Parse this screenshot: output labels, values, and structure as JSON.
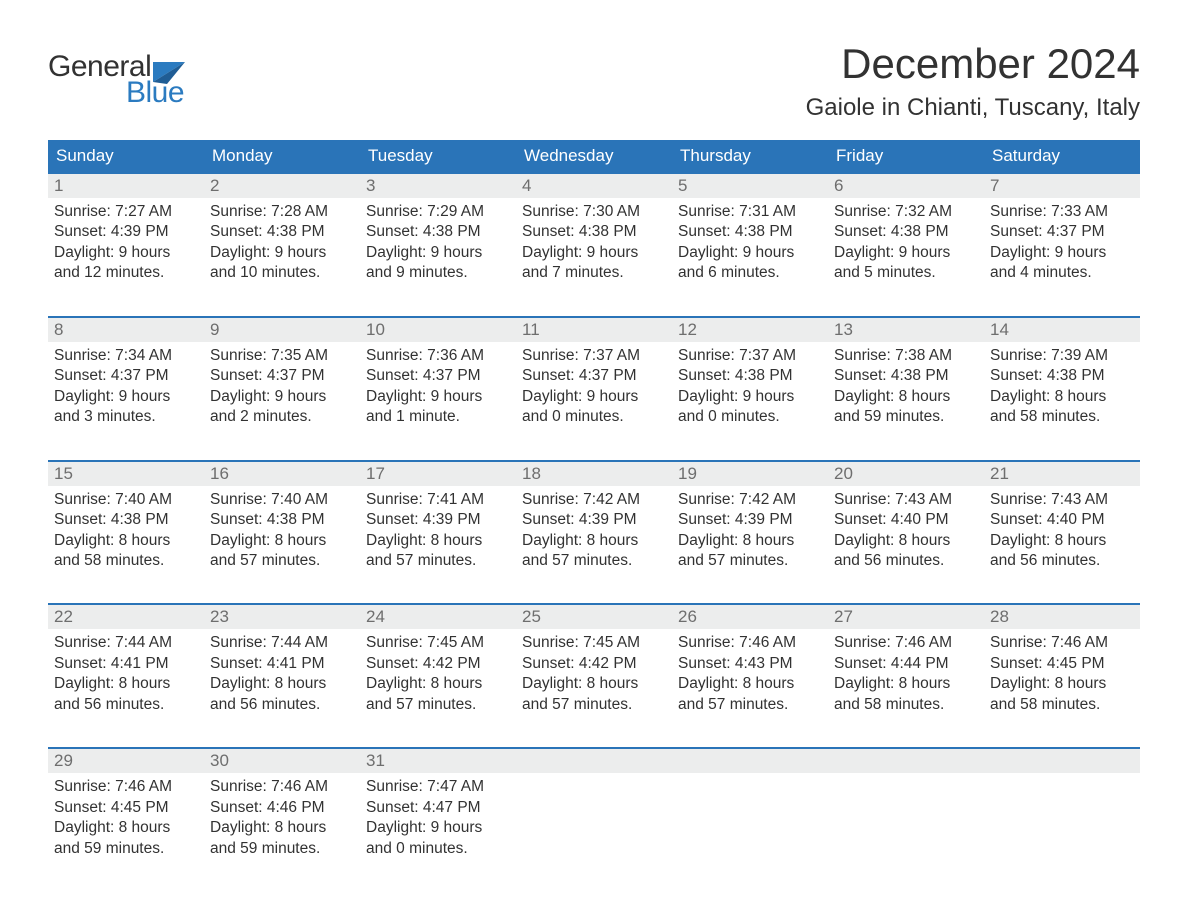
{
  "colors": {
    "header_bg": "#2a74b8",
    "header_text": "#ffffff",
    "daynum_bg": "#eceded",
    "daynum_text": "#6e6e6e",
    "week_top_border": "#2a74b8",
    "body_text": "#323232",
    "logo_blue": "#2b7bc0",
    "page_bg": "#ffffff"
  },
  "typography": {
    "month_title_fontsize": 42,
    "location_fontsize": 24,
    "header_fontsize": 17,
    "daynum_fontsize": 17,
    "cell_fontsize": 15.5,
    "logo_fontsize": 30
  },
  "logo": {
    "line1": "General",
    "line2": "Blue"
  },
  "title": "December 2024",
  "location": "Gaiole in Chianti, Tuscany, Italy",
  "weekday_headers": [
    "Sunday",
    "Monday",
    "Tuesday",
    "Wednesday",
    "Thursday",
    "Friday",
    "Saturday"
  ],
  "weeks": [
    {
      "days": [
        {
          "num": "1",
          "sunrise": "Sunrise: 7:27 AM",
          "sunset": "Sunset: 4:39 PM",
          "day1": "Daylight: 9 hours",
          "day2": "and 12 minutes."
        },
        {
          "num": "2",
          "sunrise": "Sunrise: 7:28 AM",
          "sunset": "Sunset: 4:38 PM",
          "day1": "Daylight: 9 hours",
          "day2": "and 10 minutes."
        },
        {
          "num": "3",
          "sunrise": "Sunrise: 7:29 AM",
          "sunset": "Sunset: 4:38 PM",
          "day1": "Daylight: 9 hours",
          "day2": "and 9 minutes."
        },
        {
          "num": "4",
          "sunrise": "Sunrise: 7:30 AM",
          "sunset": "Sunset: 4:38 PM",
          "day1": "Daylight: 9 hours",
          "day2": "and 7 minutes."
        },
        {
          "num": "5",
          "sunrise": "Sunrise: 7:31 AM",
          "sunset": "Sunset: 4:38 PM",
          "day1": "Daylight: 9 hours",
          "day2": "and 6 minutes."
        },
        {
          "num": "6",
          "sunrise": "Sunrise: 7:32 AM",
          "sunset": "Sunset: 4:38 PM",
          "day1": "Daylight: 9 hours",
          "day2": "and 5 minutes."
        },
        {
          "num": "7",
          "sunrise": "Sunrise: 7:33 AM",
          "sunset": "Sunset: 4:37 PM",
          "day1": "Daylight: 9 hours",
          "day2": "and 4 minutes."
        }
      ]
    },
    {
      "days": [
        {
          "num": "8",
          "sunrise": "Sunrise: 7:34 AM",
          "sunset": "Sunset: 4:37 PM",
          "day1": "Daylight: 9 hours",
          "day2": "and 3 minutes."
        },
        {
          "num": "9",
          "sunrise": "Sunrise: 7:35 AM",
          "sunset": "Sunset: 4:37 PM",
          "day1": "Daylight: 9 hours",
          "day2": "and 2 minutes."
        },
        {
          "num": "10",
          "sunrise": "Sunrise: 7:36 AM",
          "sunset": "Sunset: 4:37 PM",
          "day1": "Daylight: 9 hours",
          "day2": "and 1 minute."
        },
        {
          "num": "11",
          "sunrise": "Sunrise: 7:37 AM",
          "sunset": "Sunset: 4:37 PM",
          "day1": "Daylight: 9 hours",
          "day2": "and 0 minutes."
        },
        {
          "num": "12",
          "sunrise": "Sunrise: 7:37 AM",
          "sunset": "Sunset: 4:38 PM",
          "day1": "Daylight: 9 hours",
          "day2": "and 0 minutes."
        },
        {
          "num": "13",
          "sunrise": "Sunrise: 7:38 AM",
          "sunset": "Sunset: 4:38 PM",
          "day1": "Daylight: 8 hours",
          "day2": "and 59 minutes."
        },
        {
          "num": "14",
          "sunrise": "Sunrise: 7:39 AM",
          "sunset": "Sunset: 4:38 PM",
          "day1": "Daylight: 8 hours",
          "day2": "and 58 minutes."
        }
      ]
    },
    {
      "days": [
        {
          "num": "15",
          "sunrise": "Sunrise: 7:40 AM",
          "sunset": "Sunset: 4:38 PM",
          "day1": "Daylight: 8 hours",
          "day2": "and 58 minutes."
        },
        {
          "num": "16",
          "sunrise": "Sunrise: 7:40 AM",
          "sunset": "Sunset: 4:38 PM",
          "day1": "Daylight: 8 hours",
          "day2": "and 57 minutes."
        },
        {
          "num": "17",
          "sunrise": "Sunrise: 7:41 AM",
          "sunset": "Sunset: 4:39 PM",
          "day1": "Daylight: 8 hours",
          "day2": "and 57 minutes."
        },
        {
          "num": "18",
          "sunrise": "Sunrise: 7:42 AM",
          "sunset": "Sunset: 4:39 PM",
          "day1": "Daylight: 8 hours",
          "day2": "and 57 minutes."
        },
        {
          "num": "19",
          "sunrise": "Sunrise: 7:42 AM",
          "sunset": "Sunset: 4:39 PM",
          "day1": "Daylight: 8 hours",
          "day2": "and 57 minutes."
        },
        {
          "num": "20",
          "sunrise": "Sunrise: 7:43 AM",
          "sunset": "Sunset: 4:40 PM",
          "day1": "Daylight: 8 hours",
          "day2": "and 56 minutes."
        },
        {
          "num": "21",
          "sunrise": "Sunrise: 7:43 AM",
          "sunset": "Sunset: 4:40 PM",
          "day1": "Daylight: 8 hours",
          "day2": "and 56 minutes."
        }
      ]
    },
    {
      "days": [
        {
          "num": "22",
          "sunrise": "Sunrise: 7:44 AM",
          "sunset": "Sunset: 4:41 PM",
          "day1": "Daylight: 8 hours",
          "day2": "and 56 minutes."
        },
        {
          "num": "23",
          "sunrise": "Sunrise: 7:44 AM",
          "sunset": "Sunset: 4:41 PM",
          "day1": "Daylight: 8 hours",
          "day2": "and 56 minutes."
        },
        {
          "num": "24",
          "sunrise": "Sunrise: 7:45 AM",
          "sunset": "Sunset: 4:42 PM",
          "day1": "Daylight: 8 hours",
          "day2": "and 57 minutes."
        },
        {
          "num": "25",
          "sunrise": "Sunrise: 7:45 AM",
          "sunset": "Sunset: 4:42 PM",
          "day1": "Daylight: 8 hours",
          "day2": "and 57 minutes."
        },
        {
          "num": "26",
          "sunrise": "Sunrise: 7:46 AM",
          "sunset": "Sunset: 4:43 PM",
          "day1": "Daylight: 8 hours",
          "day2": "and 57 minutes."
        },
        {
          "num": "27",
          "sunrise": "Sunrise: 7:46 AM",
          "sunset": "Sunset: 4:44 PM",
          "day1": "Daylight: 8 hours",
          "day2": "and 58 minutes."
        },
        {
          "num": "28",
          "sunrise": "Sunrise: 7:46 AM",
          "sunset": "Sunset: 4:45 PM",
          "day1": "Daylight: 8 hours",
          "day2": "and 58 minutes."
        }
      ]
    },
    {
      "days": [
        {
          "num": "29",
          "sunrise": "Sunrise: 7:46 AM",
          "sunset": "Sunset: 4:45 PM",
          "day1": "Daylight: 8 hours",
          "day2": "and 59 minutes."
        },
        {
          "num": "30",
          "sunrise": "Sunrise: 7:46 AM",
          "sunset": "Sunset: 4:46 PM",
          "day1": "Daylight: 8 hours",
          "day2": "and 59 minutes."
        },
        {
          "num": "31",
          "sunrise": "Sunrise: 7:47 AM",
          "sunset": "Sunset: 4:47 PM",
          "day1": "Daylight: 9 hours",
          "day2": "and 0 minutes."
        },
        {
          "num": "",
          "sunrise": "",
          "sunset": "",
          "day1": "",
          "day2": ""
        },
        {
          "num": "",
          "sunrise": "",
          "sunset": "",
          "day1": "",
          "day2": ""
        },
        {
          "num": "",
          "sunrise": "",
          "sunset": "",
          "day1": "",
          "day2": ""
        },
        {
          "num": "",
          "sunrise": "",
          "sunset": "",
          "day1": "",
          "day2": ""
        }
      ]
    }
  ]
}
